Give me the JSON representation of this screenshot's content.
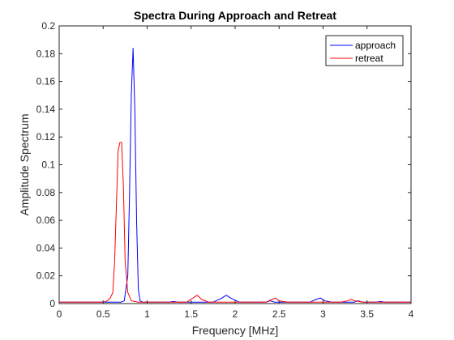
{
  "chart_data": {
    "type": "line",
    "title": "Spectra During Approach and Retreat",
    "xlabel": "Frequency [MHz]",
    "ylabel": "Amplitude Spectrum",
    "xlim": [
      0,
      4
    ],
    "ylim": [
      0,
      0.2
    ],
    "xticks": [
      0,
      0.5,
      1,
      1.5,
      2,
      2.5,
      3,
      3.5,
      4
    ],
    "xtick_labels": [
      "0",
      "0.5",
      "1",
      "1.5",
      "2",
      "2.5",
      "3",
      "3.5",
      "4"
    ],
    "yticks": [
      0,
      0.02,
      0.04,
      0.06,
      0.08,
      0.1,
      0.12,
      0.14,
      0.16,
      0.18,
      0.2
    ],
    "ytick_labels": [
      "0",
      "0.02",
      "0.04",
      "0.06",
      "0.08",
      "0.1",
      "0.12",
      "0.14",
      "0.16",
      "0.18",
      "0.2"
    ],
    "grid": false,
    "legend_position": "top-right",
    "series": [
      {
        "name": "approach",
        "color": "#0000ff",
        "x": [
          0,
          0.7,
          0.74,
          0.78,
          0.8,
          0.82,
          0.84,
          0.86,
          0.88,
          0.9,
          0.92,
          0.95,
          1.0,
          1.25,
          1.3,
          1.35,
          1.75,
          1.85,
          1.9,
          1.95,
          2.05,
          2.35,
          2.4,
          2.45,
          2.55,
          2.85,
          2.92,
          2.97,
          3.02,
          3.1,
          3.35,
          3.4,
          3.45,
          3.55,
          3.6,
          3.66,
          3.7,
          3.74,
          3.8,
          4.0
        ],
        "y": [
          0.001,
          0.001,
          0.002,
          0.02,
          0.08,
          0.15,
          0.184,
          0.14,
          0.06,
          0.01,
          0.002,
          0.001,
          0.001,
          0.001,
          0.0015,
          0.001,
          0.001,
          0.004,
          0.006,
          0.004,
          0.001,
          0.001,
          0.002,
          0.001,
          0.001,
          0.001,
          0.003,
          0.004,
          0.002,
          0.001,
          0.001,
          0.002,
          0.001,
          0.001,
          0.001,
          0.0015,
          0.001,
          0.001,
          0.001,
          0.001
        ]
      },
      {
        "name": "retreat",
        "color": "#ff0000",
        "x": [
          0,
          0.5,
          0.55,
          0.58,
          0.61,
          0.63,
          0.65,
          0.67,
          0.69,
          0.71,
          0.73,
          0.75,
          0.78,
          0.82,
          0.9,
          1.45,
          1.52,
          1.57,
          1.62,
          1.7,
          2.35,
          2.42,
          2.46,
          2.5,
          2.6,
          3.2,
          3.28,
          3.32,
          3.36,
          3.45,
          4.0
        ],
        "y": [
          0.001,
          0.001,
          0.002,
          0.004,
          0.008,
          0.03,
          0.07,
          0.11,
          0.116,
          0.116,
          0.085,
          0.03,
          0.008,
          0.002,
          0.001,
          0.001,
          0.004,
          0.006,
          0.003,
          0.001,
          0.001,
          0.003,
          0.004,
          0.002,
          0.001,
          0.001,
          0.002,
          0.003,
          0.002,
          0.001,
          0.001
        ]
      }
    ]
  }
}
